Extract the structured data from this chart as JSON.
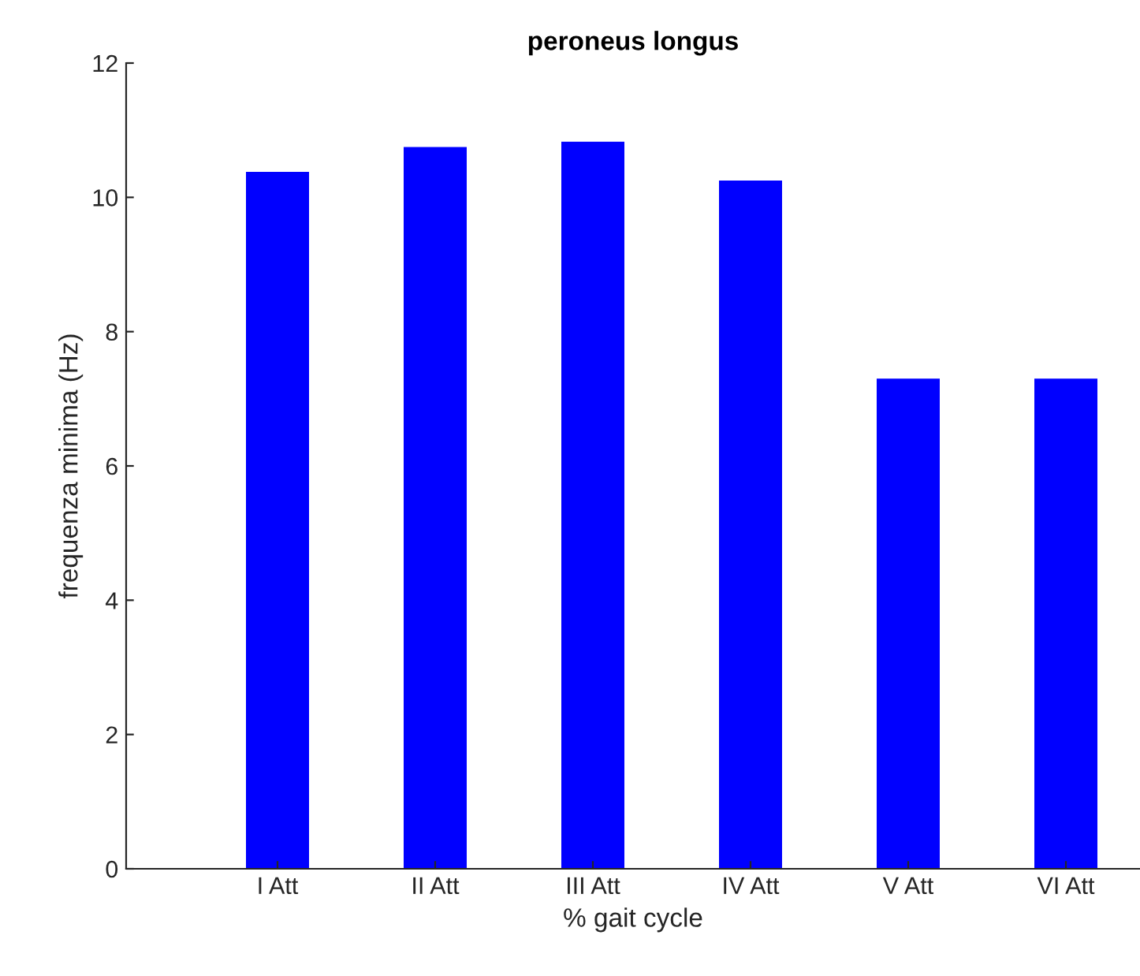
{
  "chart_data": {
    "type": "bar",
    "title": "peroneus longus",
    "xlabel": "% gait cycle",
    "ylabel": "frequenza minima (Hz)",
    "categories": [
      "I Att",
      "II Att",
      "III Att",
      "IV Att",
      "V Att",
      "VI Att"
    ],
    "values": [
      10.38,
      10.75,
      10.83,
      10.25,
      7.3,
      7.3
    ],
    "color": "#0000ff",
    "ylim": [
      0,
      12
    ],
    "yticks": [
      0,
      2,
      4,
      6,
      8,
      10,
      12
    ],
    "grid": false,
    "legend": false
  }
}
